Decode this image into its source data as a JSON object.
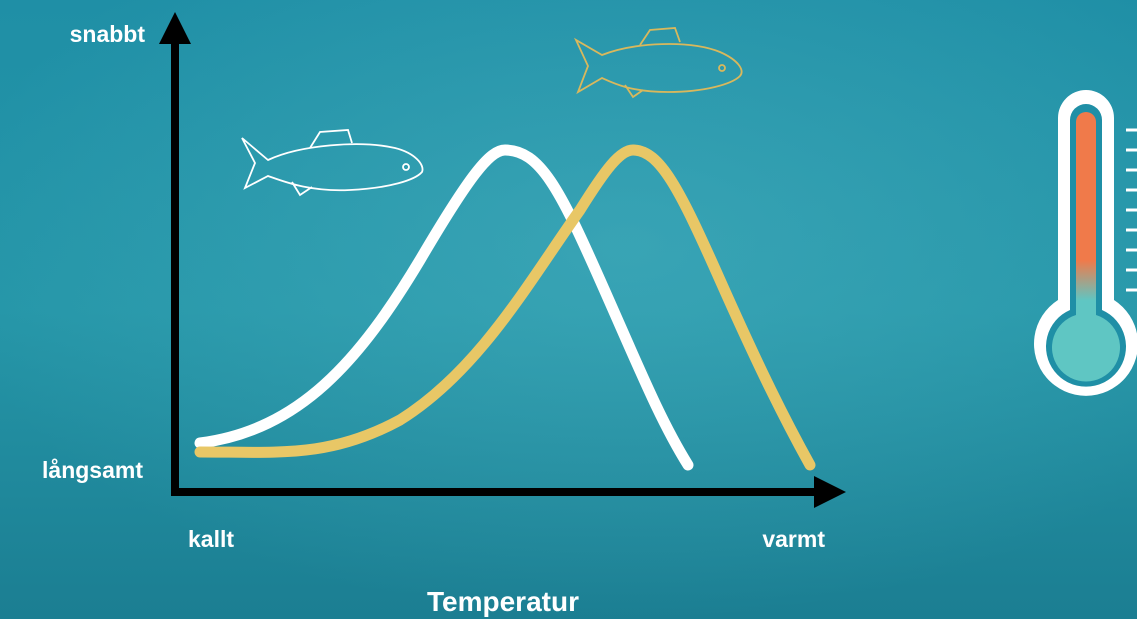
{
  "y_axis": {
    "top_label": "snabbt",
    "bottom_label": "långsamt"
  },
  "x_axis": {
    "left_label": "kallt",
    "right_label": "varmt",
    "title": "Temperatur"
  }
}
